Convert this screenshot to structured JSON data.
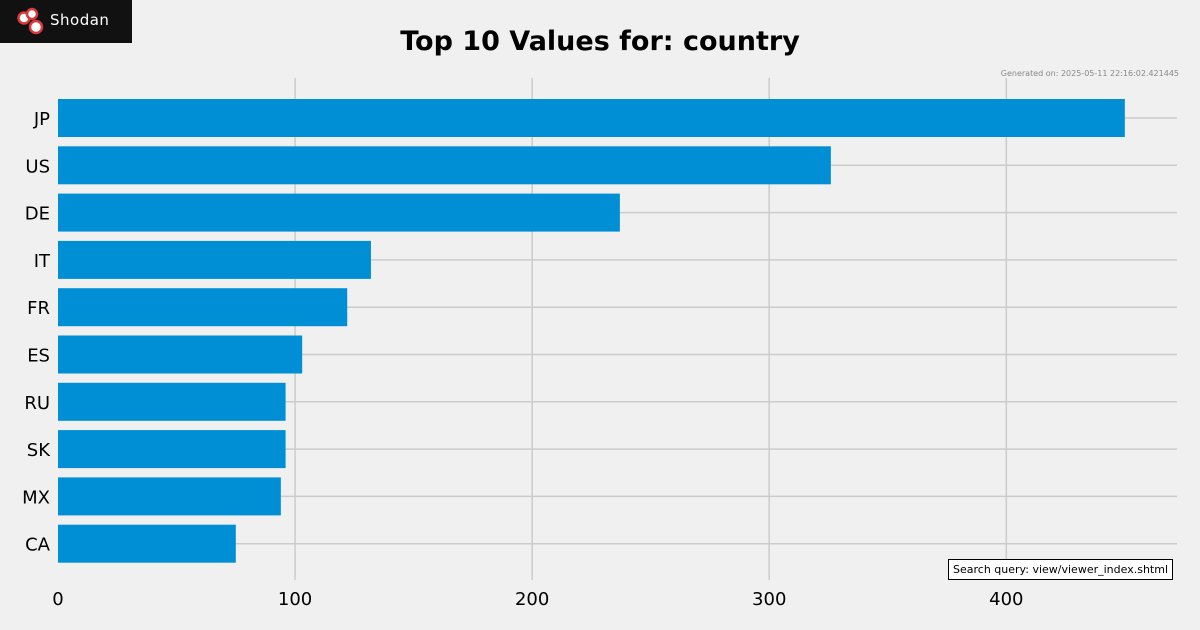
{
  "logo": {
    "text": "Shodan"
  },
  "chart_data": {
    "type": "bar",
    "orientation": "horizontal",
    "title": "Top 10 Values for: country",
    "categories": [
      "JP",
      "US",
      "DE",
      "IT",
      "FR",
      "ES",
      "RU",
      "SK",
      "MX",
      "CA"
    ],
    "values": [
      450,
      326,
      237,
      132,
      122,
      103,
      96,
      96,
      94,
      75
    ],
    "xlim": [
      0,
      472
    ],
    "xticks": [
      0,
      100,
      200,
      300,
      400
    ],
    "grid": true,
    "bar_color": "#008fd5",
    "grid_color": "#cbcbcb"
  },
  "generated": "Generated on: 2025-05-11 22:16:02.421445",
  "query": "Search query: view/viewer_index.shtml"
}
